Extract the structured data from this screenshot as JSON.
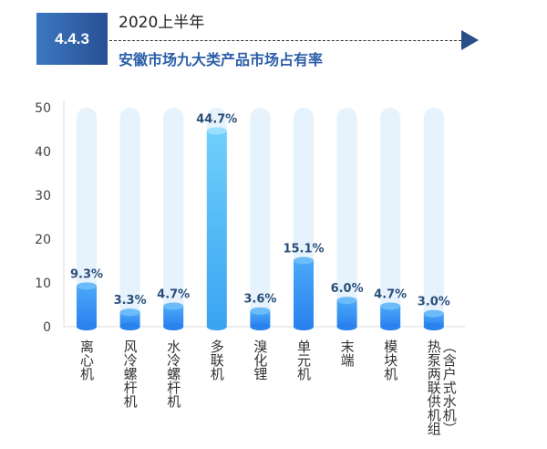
{
  "header": {
    "section": "4.4.3",
    "subtitle": "2020上半年",
    "title": "安徽市场九大类产品市场占有率"
  },
  "chart_data": {
    "type": "bar",
    "categories": [
      "离心机",
      "风冷螺杆机",
      "水冷螺杆机",
      "多联机",
      "溴化锂",
      "单元机",
      "末端",
      "模块机",
      "热泵两联供机组（含户式水机）"
    ],
    "values": [
      9.3,
      3.3,
      4.7,
      44.7,
      3.6,
      15.1,
      6.0,
      4.7,
      3.0
    ],
    "data_labels": [
      "9.3%",
      "3.3%",
      "4.7%",
      "44.7%",
      "3.6%",
      "15.1%",
      "6.0%",
      "4.7%",
      "3.0%"
    ],
    "yticks": [
      "0",
      "10",
      "20",
      "30",
      "40",
      "50"
    ],
    "ylim": [
      0,
      50
    ],
    "colors": {
      "bar": "#2f8ff0",
      "highlight": "#5cc6f8",
      "track": "#e6f2fc",
      "label": "#2b4f7a"
    }
  }
}
